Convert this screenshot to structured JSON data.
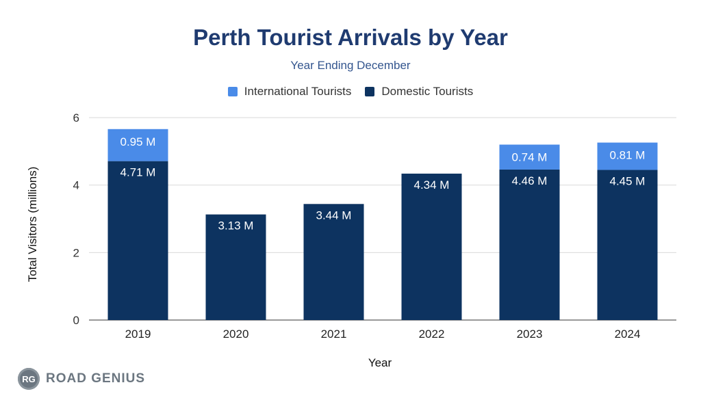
{
  "header": {
    "title": "Perth Tourist Arrivals by Year",
    "subtitle": "Year Ending December"
  },
  "legend": {
    "international": "International Tourists",
    "domestic": "Domestic Tourists"
  },
  "colors": {
    "international": "#4a8be8",
    "domestic": "#0d3360",
    "grid": "#d9d9d9",
    "title": "#1f3b70"
  },
  "chart_data": {
    "type": "bar",
    "stacked": true,
    "title": "Perth Tourist Arrivals by Year",
    "subtitle": "Year Ending December",
    "xlabel": "Year",
    "ylabel": "Total Visitors (millions)",
    "categories": [
      "2019",
      "2020",
      "2021",
      "2022",
      "2023",
      "2024"
    ],
    "ylim": [
      0,
      6
    ],
    "yticks": [
      0,
      2,
      4,
      6
    ],
    "grid": true,
    "legend_position": "top",
    "series": [
      {
        "name": "Domestic Tourists",
        "values": [
          4.71,
          3.13,
          3.44,
          4.34,
          4.46,
          4.45
        ],
        "labels": [
          "4.71 M",
          "3.13 M",
          "3.44 M",
          "4.34 M",
          "4.46 M",
          "4.45 M"
        ]
      },
      {
        "name": "International Tourists",
        "values": [
          0.95,
          null,
          null,
          null,
          0.74,
          0.81
        ],
        "labels": [
          "0.95 M",
          null,
          null,
          null,
          "0.74 M",
          "0.81 M"
        ]
      }
    ]
  },
  "branding": {
    "logo_mark": "RG",
    "logo_text": "ROAD GENIUS"
  }
}
